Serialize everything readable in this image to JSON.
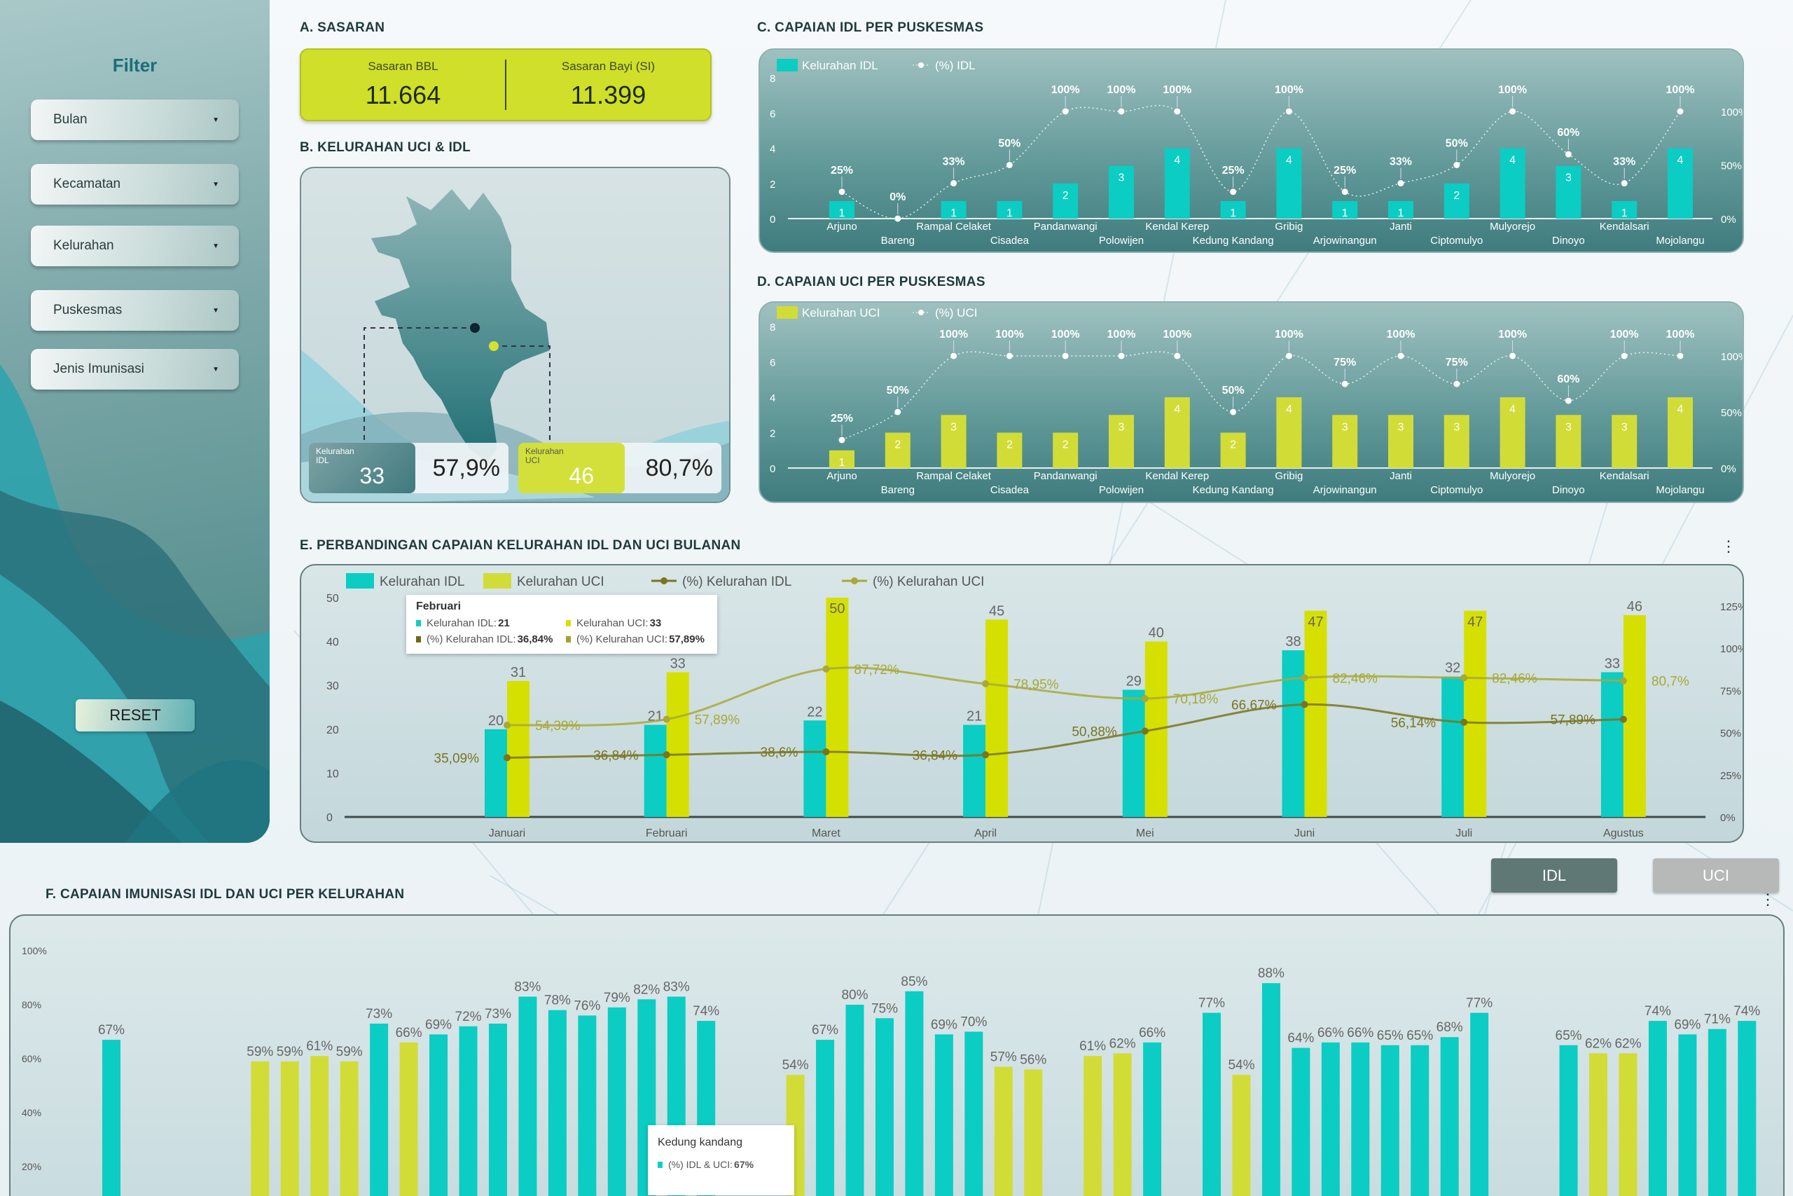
{
  "sidebar": {
    "title": "Filter",
    "filters": [
      {
        "label": "Bulan"
      },
      {
        "label": "Kecamatan"
      },
      {
        "label": "Kelurahan"
      },
      {
        "label": "Puskesmas"
      },
      {
        "label": "Jenis Imunisasi"
      }
    ],
    "reset_label": "RESET"
  },
  "section_a": {
    "title": "A.  SASARAN",
    "items": [
      {
        "label": "Sasaran BBL",
        "value": "11.664"
      },
      {
        "label": "Sasaran Bayi (SI)",
        "value": "11.399"
      }
    ]
  },
  "section_b": {
    "title": "B.  KELURAHAN UCI & IDL",
    "idl": {
      "label": "Kelurahan IDL",
      "count": "33",
      "percent": "57,9%"
    },
    "uci": {
      "label": "Kelurahan UCI",
      "count": "46",
      "percent": "80,7%"
    }
  },
  "section_c": {
    "title": "C.  CAPAIAN IDL PER PUSKESMAS"
  },
  "section_d": {
    "title": "D.  CAPAIAN UCI PER PUSKESMAS"
  },
  "section_e": {
    "title": "E.  PERBANDINGAN CAPAIAN KELURAHAN IDL DAN UCI BULANAN",
    "tooltip": {
      "title": "Februari",
      "rows": [
        {
          "label": "Kelurahan IDL: ",
          "value": "21",
          "color": "#0fcfc3"
        },
        {
          "label": "Kelurahan UCI: ",
          "value": "33",
          "color": "#d6e000"
        },
        {
          "label": "(%) Kelurahan IDL: ",
          "value": "36,84%",
          "color": "#6f6a10"
        },
        {
          "label": "(%) Kelurahan UCI: ",
          "value": "57,89%",
          "color": "#a3a228"
        }
      ]
    }
  },
  "section_f": {
    "title": "F.  CAPAIAN IMUNISASI IDL DAN UCI PER KELURAHAN",
    "toggle": {
      "idl_label": "IDL",
      "uci_label": "UCI",
      "active": "IDL"
    },
    "tooltip": {
      "title": "Kedung kandang",
      "label": "(%) IDL & UCI: ",
      "value": "67%",
      "color": "#0fcfc3"
    }
  },
  "colors": {
    "teal": "#0bcdc3",
    "lime": "#d2dc37",
    "olive_dark": "#7a7420",
    "olive_light": "#a9a838"
  },
  "chart_data": [
    {
      "type": "bar",
      "title": "C.  CAPAIAN IDL PER PUSKESMAS",
      "categories": [
        "Arjuno",
        "Bareng",
        "Rampal Celaket",
        "Cisadea",
        "Pandanwangi",
        "Polowijen",
        "Kendal Kerep",
        "Kedung Kandang",
        "Gribig",
        "Arjowinangun",
        "Janti",
        "Ciptomulyo",
        "Mulyorejo",
        "Dinoyo",
        "Kendalsari",
        "Mojolangu"
      ],
      "series": [
        {
          "name": "Kelurahan IDL",
          "type": "bar",
          "values": [
            1,
            0,
            1,
            1,
            2,
            3,
            4,
            1,
            4,
            1,
            1,
            2,
            4,
            3,
            1,
            4
          ]
        },
        {
          "name": "(%) IDL",
          "type": "line",
          "axis": "right",
          "values": [
            25,
            0,
            33,
            50,
            100,
            100,
            100,
            25,
            100,
            25,
            33,
            50,
            100,
            60,
            33,
            100
          ]
        }
      ],
      "ylim": [
        0,
        8
      ],
      "yticks": [
        "0",
        "2",
        "4",
        "6",
        "8"
      ],
      "y2ticks": [
        "0%",
        "50%",
        "100%"
      ],
      "legend": "top-left"
    },
    {
      "type": "bar",
      "title": "D.  CAPAIAN UCI PER PUSKESMAS",
      "categories": [
        "Arjuno",
        "Bareng",
        "Rampal Celaket",
        "Cisadea",
        "Pandanwangi",
        "Polowijen",
        "Kendal Kerep",
        "Kedung Kandang",
        "Gribig",
        "Arjowinangun",
        "Janti",
        "Ciptomulyo",
        "Mulyorejo",
        "Dinoyo",
        "Kendalsari",
        "Mojolangu"
      ],
      "series": [
        {
          "name": "Kelurahan UCI",
          "type": "bar",
          "values": [
            1,
            2,
            3,
            2,
            2,
            3,
            4,
            2,
            4,
            3,
            3,
            3,
            4,
            3,
            3,
            4
          ]
        },
        {
          "name": "(%) UCI",
          "type": "line",
          "axis": "right",
          "values": [
            25,
            50,
            100,
            100,
            100,
            100,
            100,
            50,
            100,
            75,
            100,
            75,
            100,
            60,
            100,
            100
          ]
        }
      ],
      "ylim": [
        0,
        8
      ],
      "yticks": [
        "0",
        "2",
        "4",
        "6",
        "8"
      ],
      "y2ticks": [
        "0%",
        "50%",
        "100%"
      ],
      "legend": "top-left"
    },
    {
      "type": "bar",
      "title": "E.  PERBANDINGAN CAPAIAN KELURAHAN IDL DAN UCI BULANAN",
      "categories": [
        "Januari",
        "Februari",
        "Maret",
        "April",
        "Mei",
        "Juni",
        "Juli",
        "Agustus"
      ],
      "series": [
        {
          "name": "Kelurahan IDL",
          "type": "bar",
          "values": [
            20,
            21,
            22,
            21,
            29,
            38,
            32,
            33
          ]
        },
        {
          "name": "Kelurahan UCI",
          "type": "bar",
          "values": [
            31,
            33,
            50,
            45,
            40,
            47,
            47,
            46
          ]
        },
        {
          "name": "(%) Kelurahan IDL",
          "type": "line",
          "axis": "right",
          "values": [
            35.09,
            36.84,
            38.6,
            36.84,
            50.88,
            66.67,
            56.14,
            57.89
          ],
          "labels": [
            "35,09%",
            "36,84%",
            "38,6%",
            "36,84%",
            "50,88%",
            "66,67%",
            "56,14%",
            "57,89%"
          ]
        },
        {
          "name": "(%) Kelurahan UCI",
          "type": "line",
          "axis": "right",
          "values": [
            54.39,
            57.89,
            87.72,
            78.95,
            70.18,
            82.46,
            82.46,
            80.7
          ],
          "labels": [
            "54,39%",
            "57,89%",
            "87,72%",
            "78,95%",
            "70,18%",
            "82,46%",
            "82,46%",
            "80,7%"
          ]
        }
      ],
      "ylim": [
        0,
        50
      ],
      "yticks": [
        "0",
        "10",
        "20",
        "30",
        "40",
        "50"
      ],
      "y2lim": [
        0,
        125
      ],
      "y2ticks": [
        "0%",
        "25%",
        "50%",
        "75%",
        "100%",
        "125%"
      ],
      "legend": "top-left"
    },
    {
      "type": "bar",
      "title": "F.  CAPAIAN IMUNISASI IDL DAN UCI PER KELURAHAN",
      "series": [
        {
          "name": "(%) IDL & UCI",
          "values": [
            67,
            null,
            null,
            null,
            null,
            59,
            59,
            61,
            59,
            73,
            66,
            69,
            72,
            73,
            83,
            78,
            76,
            79,
            82,
            83,
            74,
            null,
            null,
            54,
            67,
            80,
            75,
            85,
            69,
            70,
            57,
            56,
            null,
            61,
            62,
            66,
            null,
            77,
            54,
            88,
            64,
            66,
            66,
            65,
            65,
            68,
            77,
            null,
            null,
            65,
            62,
            62,
            74,
            69,
            71,
            74
          ]
        }
      ],
      "bar_colors": [
        "t",
        "",
        "",
        "",
        "",
        "y",
        "y",
        "y",
        "y",
        "t",
        "y",
        "t",
        "t",
        "t",
        "t",
        "t",
        "t",
        "t",
        "t",
        "t",
        "t",
        "",
        "",
        "y",
        "t",
        "t",
        "t",
        "t",
        "t",
        "t",
        "y",
        "y",
        "",
        "y",
        "y",
        "t",
        "",
        "t",
        "y",
        "t",
        "t",
        "t",
        "t",
        "t",
        "t",
        "t",
        "t",
        "",
        "",
        "t",
        "y",
        "y",
        "t",
        "t",
        "t",
        "t"
      ],
      "ylim": [
        0,
        100
      ],
      "yticks": [
        "20%",
        "40%",
        "60%",
        "80%",
        "100%"
      ]
    }
  ]
}
